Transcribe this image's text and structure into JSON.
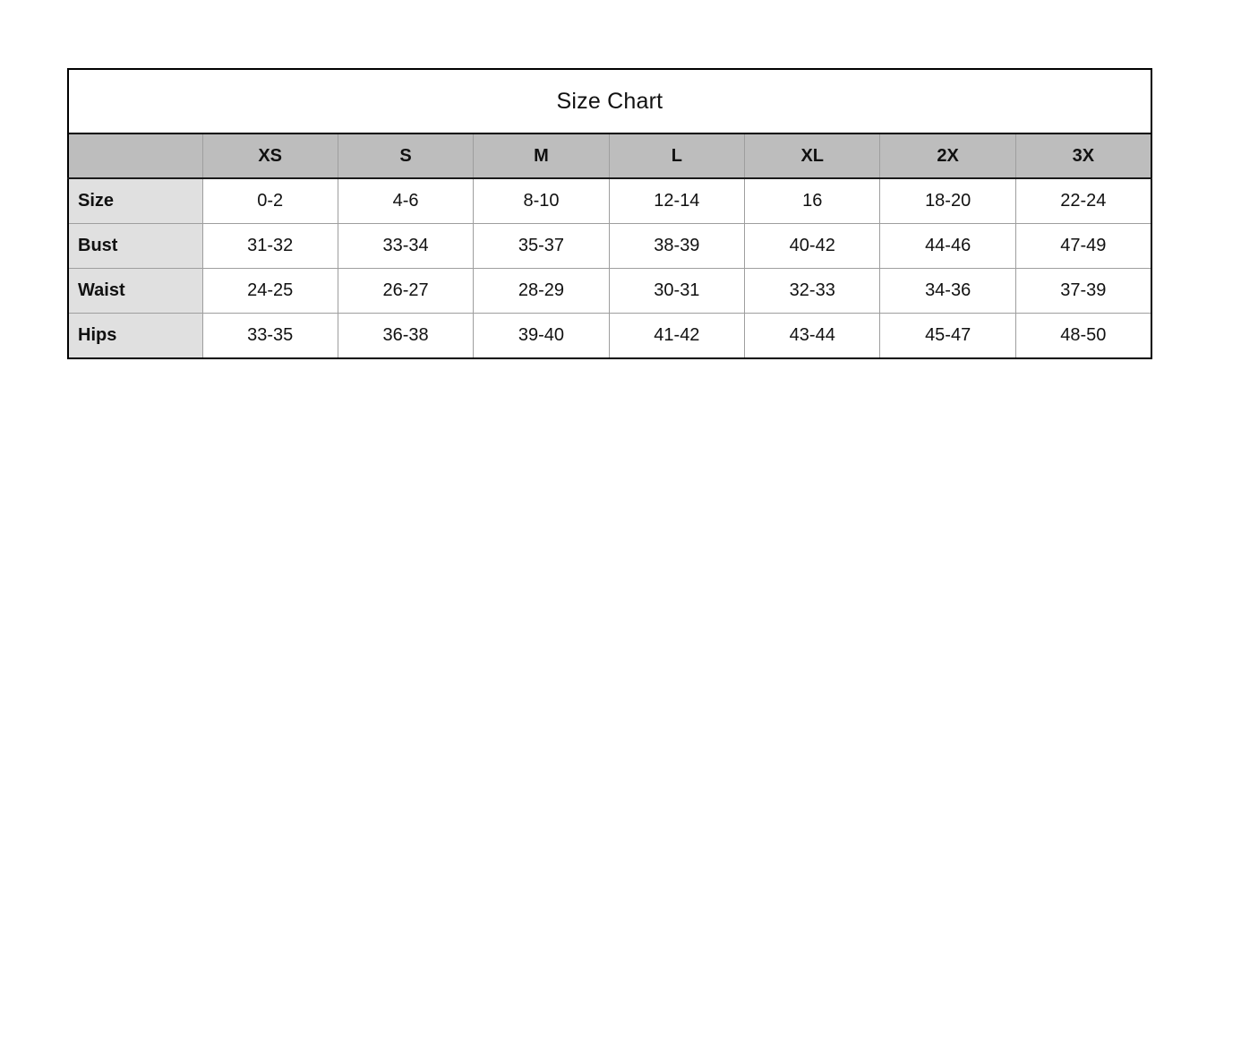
{
  "title": "Size Chart",
  "table": {
    "column_headers": [
      "",
      "XS",
      "S",
      "M",
      "L",
      "XL",
      "2X",
      "3X"
    ],
    "rows": [
      {
        "label": "Size",
        "values": [
          "0-2",
          "4-6",
          "8-10",
          "12-14",
          "16",
          "18-20",
          "22-24"
        ]
      },
      {
        "label": "Bust",
        "values": [
          "31-32",
          "33-34",
          "35-37",
          "38-39",
          "40-42",
          "44-46",
          "47-49"
        ]
      },
      {
        "label": "Waist",
        "values": [
          "24-25",
          "26-27",
          "28-29",
          "30-31",
          "32-33",
          "34-36",
          "37-39"
        ]
      },
      {
        "label": "Hips",
        "values": [
          "33-35",
          "36-38",
          "39-40",
          "41-42",
          "43-44",
          "45-47",
          "48-50"
        ]
      }
    ]
  },
  "colors": {
    "header_row_bg": "#bdbdbd",
    "label_column_bg": "#e0e0e0",
    "outer_border": "#000000",
    "inner_border": "#9e9e9e",
    "text": "#111111",
    "background": "#ffffff"
  }
}
